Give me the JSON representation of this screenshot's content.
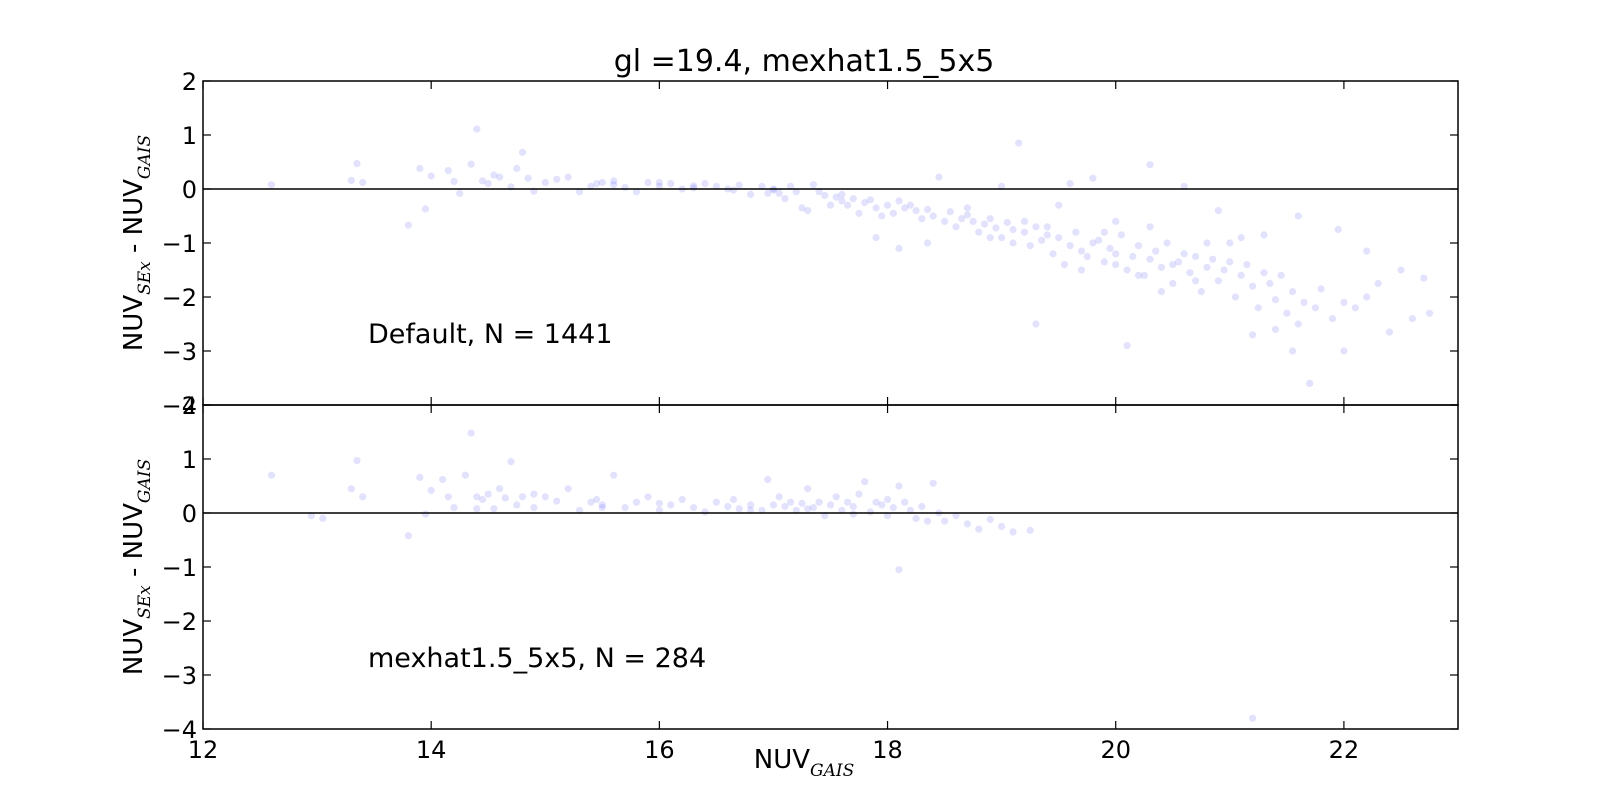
{
  "chart_data": {
    "type": "scatter",
    "title": "gl =19.4, mexhat1.5_5x5",
    "point_color": "#3b3bf0",
    "point_opacity": 0.15,
    "x_axis": {
      "label_main": "NUV",
      "label_sub": "GAIS",
      "lim": [
        12,
        23
      ],
      "ticks": [
        12,
        14,
        16,
        18,
        20,
        22
      ],
      "tick_labels": [
        "12",
        "14",
        "16",
        "18",
        "20",
        "22"
      ]
    },
    "panels": [
      {
        "name": "Default",
        "annotation": "Default, N = 1441",
        "ylim": [
          -4,
          2
        ],
        "yticks": [
          2,
          1,
          0,
          -1,
          -2,
          -3,
          -4
        ],
        "ytick_labels": [
          "2",
          "1",
          "0",
          "−1",
          "−2",
          "−3",
          "−4"
        ],
        "ylabel_main": "NUV",
        "ylabel_sub1": "SEx",
        "ylabel_mid": " - NUV",
        "ylabel_sub2": "GAIS",
        "zero_line": true,
        "points": [
          [
            12.6,
            0.08
          ],
          [
            13.35,
            0.47
          ],
          [
            13.3,
            0.16
          ],
          [
            13.4,
            0.12
          ],
          [
            13.8,
            -0.67
          ],
          [
            13.95,
            -0.37
          ],
          [
            13.9,
            0.38
          ],
          [
            14.0,
            0.24
          ],
          [
            14.15,
            0.34
          ],
          [
            14.2,
            0.14
          ],
          [
            14.25,
            -0.08
          ],
          [
            14.35,
            0.46
          ],
          [
            14.4,
            1.11
          ],
          [
            14.45,
            0.15
          ],
          [
            14.5,
            0.1
          ],
          [
            14.55,
            0.26
          ],
          [
            14.6,
            0.22
          ],
          [
            14.7,
            0.04
          ],
          [
            14.75,
            0.38
          ],
          [
            14.8,
            0.68
          ],
          [
            14.85,
            0.2
          ],
          [
            14.9,
            -0.04
          ],
          [
            15.0,
            0.12
          ],
          [
            15.1,
            0.18
          ],
          [
            15.2,
            0.22
          ],
          [
            15.3,
            -0.05
          ],
          [
            15.4,
            0.05
          ],
          [
            15.45,
            0.1
          ],
          [
            15.5,
            0.12
          ],
          [
            15.6,
            0.08
          ],
          [
            15.7,
            0.03
          ],
          [
            15.8,
            -0.05
          ],
          [
            15.9,
            0.12
          ],
          [
            16.0,
            0.05
          ],
          [
            16.1,
            0.1
          ],
          [
            16.2,
            0.0
          ],
          [
            16.3,
            0.06
          ],
          [
            16.4,
            0.1
          ],
          [
            16.5,
            0.05
          ],
          [
            16.6,
            0.0
          ],
          [
            16.65,
            -0.02
          ],
          [
            16.7,
            0.07
          ],
          [
            16.8,
            -0.1
          ],
          [
            16.9,
            0.05
          ],
          [
            16.95,
            -0.08
          ],
          [
            17.0,
            -0.02
          ],
          [
            17.05,
            -0.08
          ],
          [
            17.1,
            -0.18
          ],
          [
            17.15,
            0.05
          ],
          [
            17.2,
            -0.05
          ],
          [
            17.25,
            -0.35
          ],
          [
            17.3,
            -0.4
          ],
          [
            17.35,
            0.08
          ],
          [
            17.4,
            -0.05
          ],
          [
            17.45,
            -0.12
          ],
          [
            17.5,
            -0.3
          ],
          [
            17.55,
            -0.15
          ],
          [
            17.6,
            -0.22
          ],
          [
            17.65,
            -0.3
          ],
          [
            17.7,
            -0.18
          ],
          [
            17.75,
            -0.45
          ],
          [
            17.8,
            -0.25
          ],
          [
            17.85,
            -0.2
          ],
          [
            17.9,
            -0.35
          ],
          [
            17.95,
            -0.5
          ],
          [
            18.0,
            -0.3
          ],
          [
            18.05,
            -0.45
          ],
          [
            18.1,
            -0.22
          ],
          [
            18.15,
            -0.35
          ],
          [
            18.2,
            -0.3
          ],
          [
            18.25,
            -0.4
          ],
          [
            18.3,
            -0.55
          ],
          [
            18.35,
            -0.38
          ],
          [
            18.4,
            -0.5
          ],
          [
            18.45,
            0.22
          ],
          [
            18.5,
            -0.6
          ],
          [
            18.55,
            -0.42
          ],
          [
            18.6,
            -0.7
          ],
          [
            18.65,
            -0.55
          ],
          [
            18.7,
            -0.48
          ],
          [
            18.75,
            -0.6
          ],
          [
            18.8,
            -0.8
          ],
          [
            18.85,
            -0.65
          ],
          [
            18.9,
            -0.55
          ],
          [
            18.95,
            -0.72
          ],
          [
            19.0,
            -0.9
          ],
          [
            19.05,
            -0.62
          ],
          [
            19.1,
            -0.75
          ],
          [
            19.15,
            0.85
          ],
          [
            19.2,
            -0.8
          ],
          [
            19.25,
            -1.05
          ],
          [
            19.3,
            -0.7
          ],
          [
            19.35,
            -0.95
          ],
          [
            19.4,
            -0.85
          ],
          [
            19.45,
            -1.2
          ],
          [
            19.5,
            -0.9
          ],
          [
            19.55,
            -1.4
          ],
          [
            19.6,
            -1.05
          ],
          [
            19.65,
            -0.8
          ],
          [
            19.7,
            -1.15
          ],
          [
            19.75,
            -1.25
          ],
          [
            19.8,
            -1.0
          ],
          [
            19.85,
            -0.95
          ],
          [
            19.9,
            -1.35
          ],
          [
            19.95,
            -1.1
          ],
          [
            20.0,
            -1.2
          ],
          [
            20.05,
            -0.85
          ],
          [
            20.1,
            -1.5
          ],
          [
            20.15,
            -1.25
          ],
          [
            20.2,
            -1.05
          ],
          [
            20.25,
            -1.6
          ],
          [
            20.3,
            -1.3
          ],
          [
            20.35,
            -1.15
          ],
          [
            20.4,
            -1.45
          ],
          [
            20.45,
            -1.0
          ],
          [
            20.5,
            -1.75
          ],
          [
            20.55,
            -1.35
          ],
          [
            20.6,
            -1.2
          ],
          [
            20.65,
            -1.55
          ],
          [
            20.7,
            -1.25
          ],
          [
            20.75,
            -1.9
          ],
          [
            20.8,
            -1.45
          ],
          [
            20.85,
            -1.3
          ],
          [
            20.9,
            -1.7
          ],
          [
            20.95,
            -1.5
          ],
          [
            21.0,
            -1.35
          ],
          [
            21.05,
            -2.0
          ],
          [
            21.1,
            -1.6
          ],
          [
            21.15,
            -1.4
          ],
          [
            21.2,
            -1.8
          ],
          [
            21.25,
            -2.2
          ],
          [
            21.3,
            -1.55
          ],
          [
            21.35,
            -1.75
          ],
          [
            21.4,
            -2.05
          ],
          [
            21.45,
            -1.6
          ],
          [
            21.5,
            -2.3
          ],
          [
            21.55,
            -1.9
          ],
          [
            21.6,
            -2.5
          ],
          [
            21.65,
            -2.1
          ],
          [
            21.7,
            -3.6
          ],
          [
            21.75,
            -2.2
          ],
          [
            21.8,
            -1.85
          ],
          [
            21.9,
            -2.4
          ],
          [
            22.0,
            -2.1
          ],
          [
            22.1,
            -2.2
          ],
          [
            22.2,
            -2.0
          ],
          [
            22.3,
            -1.75
          ],
          [
            22.4,
            -2.65
          ],
          [
            22.5,
            -1.5
          ],
          [
            22.6,
            -2.4
          ],
          [
            22.7,
            -1.65
          ],
          [
            22.75,
            -2.3
          ],
          [
            20.1,
            -2.9
          ],
          [
            19.3,
            -2.5
          ],
          [
            18.35,
            -1.0
          ],
          [
            18.1,
            -1.1
          ],
          [
            17.9,
            -0.9
          ],
          [
            19.6,
            0.1
          ],
          [
            19.8,
            0.2
          ],
          [
            20.3,
            0.45
          ],
          [
            20.6,
            0.05
          ],
          [
            19.0,
            0.05
          ],
          [
            19.5,
            -0.3
          ],
          [
            20.9,
            -0.4
          ],
          [
            21.3,
            -0.85
          ],
          [
            21.6,
            -0.5
          ],
          [
            21.95,
            -0.75
          ],
          [
            22.2,
            -1.15
          ],
          [
            21.2,
            -2.7
          ],
          [
            21.4,
            -2.6
          ],
          [
            22.0,
            -3.0
          ],
          [
            21.55,
            -3.0
          ],
          [
            16.0,
            0.12
          ],
          [
            15.6,
            0.15
          ],
          [
            16.3,
            0.02
          ],
          [
            17.0,
            0.0
          ],
          [
            17.6,
            -0.1
          ],
          [
            18.7,
            -0.35
          ],
          [
            19.9,
            -0.8
          ],
          [
            20.2,
            -1.6
          ],
          [
            20.4,
            -1.9
          ],
          [
            20.7,
            -1.7
          ],
          [
            19.7,
            -1.5
          ],
          [
            20.0,
            -1.4
          ],
          [
            20.5,
            -1.4
          ],
          [
            20.8,
            -1.0
          ],
          [
            19.2,
            -0.6
          ],
          [
            19.4,
            -0.7
          ],
          [
            19.1,
            -1.0
          ],
          [
            18.9,
            -0.9
          ],
          [
            20.3,
            -0.7
          ],
          [
            20.0,
            -0.6
          ],
          [
            21.0,
            -1.0
          ],
          [
            21.1,
            -0.9
          ]
        ]
      },
      {
        "name": "mexhat1.5_5x5",
        "annotation": "mexhat1.5_5x5, N = 284",
        "ylim": [
          -4,
          2
        ],
        "yticks": [
          2,
          1,
          0,
          -1,
          -2,
          -3,
          -4
        ],
        "ytick_labels": [
          "2",
          "1",
          "0",
          "−1",
          "−2",
          "−3",
          "−4"
        ],
        "ylabel_main": "NUV",
        "ylabel_sub1": "SEx",
        "ylabel_mid": " - NUV",
        "ylabel_sub2": "GAIS",
        "zero_line": true,
        "points": [
          [
            12.6,
            0.7
          ],
          [
            12.95,
            -0.05
          ],
          [
            13.05,
            -0.1
          ],
          [
            13.3,
            0.45
          ],
          [
            13.35,
            0.97
          ],
          [
            13.4,
            0.3
          ],
          [
            13.8,
            -0.42
          ],
          [
            13.9,
            0.66
          ],
          [
            13.95,
            -0.02
          ],
          [
            14.0,
            0.42
          ],
          [
            14.1,
            0.62
          ],
          [
            14.15,
            0.3
          ],
          [
            14.2,
            0.1
          ],
          [
            14.3,
            0.7
          ],
          [
            14.35,
            1.48
          ],
          [
            14.4,
            0.3
          ],
          [
            14.45,
            0.25
          ],
          [
            14.5,
            0.35
          ],
          [
            14.55,
            0.08
          ],
          [
            14.6,
            0.45
          ],
          [
            14.65,
            0.28
          ],
          [
            14.7,
            0.95
          ],
          [
            14.75,
            0.15
          ],
          [
            14.8,
            0.3
          ],
          [
            14.9,
            0.1
          ],
          [
            15.0,
            0.3
          ],
          [
            15.1,
            0.22
          ],
          [
            15.2,
            0.45
          ],
          [
            15.3,
            0.05
          ],
          [
            15.4,
            0.2
          ],
          [
            15.45,
            0.25
          ],
          [
            15.5,
            0.15
          ],
          [
            15.6,
            0.7
          ],
          [
            15.7,
            0.1
          ],
          [
            15.8,
            0.2
          ],
          [
            15.9,
            0.3
          ],
          [
            16.0,
            0.05
          ],
          [
            16.1,
            0.15
          ],
          [
            16.2,
            0.25
          ],
          [
            16.3,
            0.1
          ],
          [
            16.4,
            0.02
          ],
          [
            16.5,
            0.2
          ],
          [
            16.6,
            0.12
          ],
          [
            16.65,
            0.25
          ],
          [
            16.7,
            0.08
          ],
          [
            16.8,
            0.15
          ],
          [
            16.9,
            0.05
          ],
          [
            16.95,
            0.62
          ],
          [
            17.0,
            0.15
          ],
          [
            17.05,
            0.3
          ],
          [
            17.1,
            0.12
          ],
          [
            17.15,
            0.2
          ],
          [
            17.2,
            0.05
          ],
          [
            17.25,
            0.18
          ],
          [
            17.3,
            0.45
          ],
          [
            17.35,
            0.1
          ],
          [
            17.4,
            0.2
          ],
          [
            17.45,
            -0.05
          ],
          [
            17.5,
            0.15
          ],
          [
            17.55,
            0.3
          ],
          [
            17.6,
            0.05
          ],
          [
            17.65,
            0.2
          ],
          [
            17.7,
            0.12
          ],
          [
            17.75,
            0.35
          ],
          [
            17.8,
            0.58
          ],
          [
            17.85,
            0.02
          ],
          [
            17.9,
            0.2
          ],
          [
            17.95,
            0.15
          ],
          [
            18.0,
            -0.05
          ],
          [
            18.05,
            0.1
          ],
          [
            18.1,
            0.5
          ],
          [
            18.15,
            0.2
          ],
          [
            18.2,
            0.05
          ],
          [
            18.25,
            -0.1
          ],
          [
            18.3,
            0.12
          ],
          [
            18.35,
            -0.15
          ],
          [
            18.4,
            0.55
          ],
          [
            18.45,
            0.0
          ],
          [
            18.5,
            -0.15
          ],
          [
            18.6,
            -0.05
          ],
          [
            18.7,
            -0.2
          ],
          [
            18.8,
            -0.3
          ],
          [
            18.9,
            -0.12
          ],
          [
            19.0,
            -0.25
          ],
          [
            19.1,
            -0.35
          ],
          [
            19.25,
            -0.32
          ],
          [
            18.1,
            -1.05
          ],
          [
            21.2,
            -3.8
          ],
          [
            15.5,
            0.1
          ],
          [
            16.8,
            0.05
          ],
          [
            17.3,
            0.08
          ],
          [
            17.7,
            -0.02
          ],
          [
            18.0,
            0.25
          ],
          [
            16.0,
            0.18
          ],
          [
            14.9,
            0.35
          ],
          [
            14.4,
            0.08
          ]
        ]
      }
    ]
  }
}
